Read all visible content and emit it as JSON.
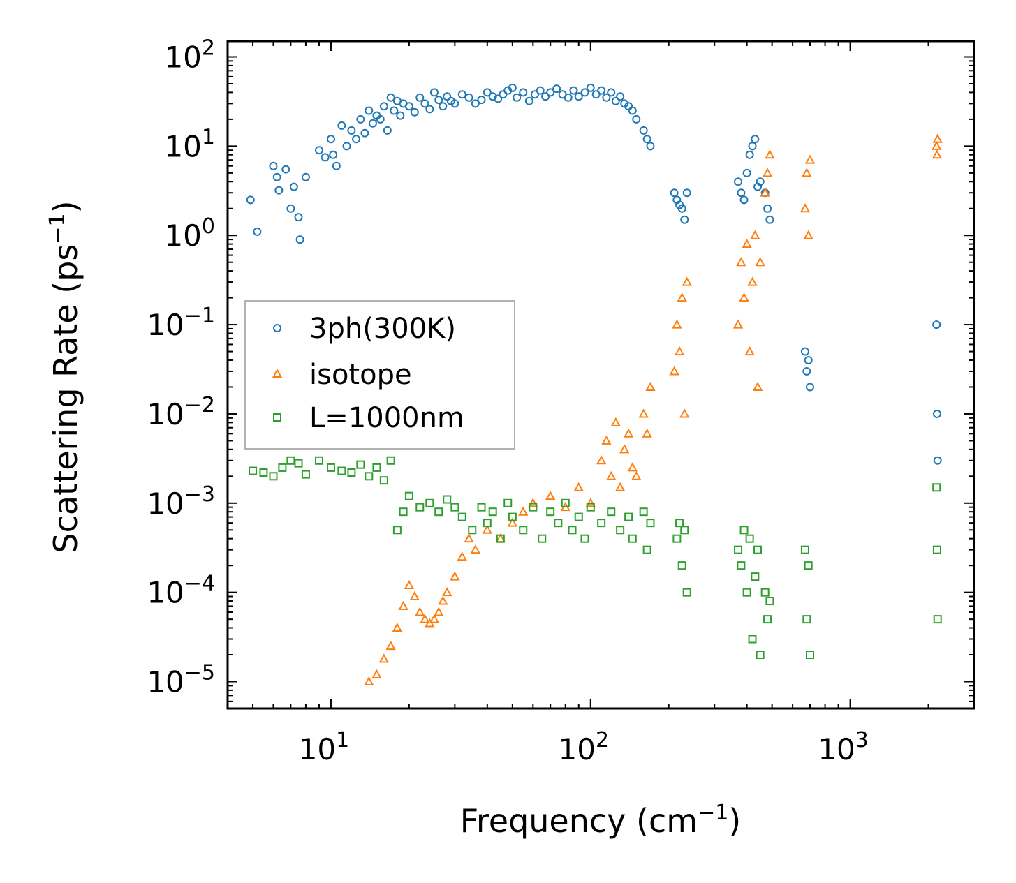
{
  "chart_data": {
    "type": "scatter",
    "xscale": "log",
    "yscale": "log",
    "xlim": [
      4,
      3000
    ],
    "ylim": [
      5e-06,
      150
    ],
    "xlabel": {
      "base": "Frequency (cm",
      "sup": "−1",
      "tail": ")"
    },
    "ylabel": {
      "base": "Scattering Rate (ps",
      "sup": "−1",
      "tail": ")"
    },
    "xticks": [
      {
        "value": 10,
        "base": "10",
        "exp": "1"
      },
      {
        "value": 100,
        "base": "10",
        "exp": "2"
      },
      {
        "value": 1000,
        "base": "10",
        "exp": "3"
      }
    ],
    "yticks": [
      {
        "value": 100,
        "base": "10",
        "exp": "2"
      },
      {
        "value": 10,
        "base": "10",
        "exp": "1"
      },
      {
        "value": 1,
        "base": "10",
        "exp": "0"
      },
      {
        "value": 0.1,
        "base": "10",
        "exp": "−1"
      },
      {
        "value": 0.01,
        "base": "10",
        "exp": "−2"
      },
      {
        "value": 0.001,
        "base": "10",
        "exp": "−3"
      },
      {
        "value": 0.0001,
        "base": "10",
        "exp": "−4"
      },
      {
        "value": 1e-05,
        "base": "10",
        "exp": "−5"
      }
    ],
    "legend_position": "center-left",
    "series": [
      {
        "name": "3ph(300K)",
        "marker": "circle",
        "color": "#1f77b4",
        "x": [
          4.9,
          5.2,
          6,
          6.2,
          6.3,
          6.7,
          7,
          7.2,
          7.5,
          7.6,
          8,
          9,
          9.5,
          10,
          10.2,
          10.5,
          11,
          11.5,
          12,
          12.5,
          13,
          13.5,
          14,
          14.5,
          15,
          15.5,
          16,
          16.5,
          17,
          17.5,
          18,
          18.5,
          19,
          20,
          21,
          22,
          23,
          24,
          25,
          26,
          27,
          28,
          29,
          30,
          32,
          34,
          36,
          38,
          40,
          42,
          44,
          46,
          48,
          50,
          52,
          55,
          58,
          61,
          64,
          67,
          70,
          74,
          78,
          82,
          86,
          90,
          95,
          100,
          105,
          110,
          115,
          120,
          125,
          130,
          135,
          140,
          145,
          150,
          160,
          165,
          170,
          210,
          215,
          220,
          225,
          230,
          235,
          370,
          380,
          390,
          400,
          410,
          420,
          430,
          440,
          450,
          470,
          480,
          490,
          670,
          680,
          690,
          700,
          2150,
          2160,
          2170
        ],
        "y": [
          2.5,
          1.1,
          6,
          4.5,
          3.2,
          5.5,
          2,
          3.5,
          1.6,
          0.9,
          4.5,
          9,
          7.5,
          12,
          8,
          6,
          17,
          10,
          15,
          12,
          20,
          14,
          25,
          18,
          22,
          20,
          28,
          15,
          35,
          25,
          32,
          22,
          30,
          28,
          24,
          35,
          30,
          26,
          40,
          33,
          28,
          36,
          32,
          30,
          38,
          35,
          30,
          33,
          40,
          36,
          34,
          38,
          42,
          45,
          35,
          40,
          32,
          38,
          42,
          36,
          40,
          44,
          38,
          35,
          42,
          36,
          40,
          45,
          38,
          42,
          35,
          40,
          32,
          36,
          30,
          28,
          25,
          20,
          15,
          12,
          10,
          3,
          2.5,
          2.2,
          2,
          1.5,
          3,
          4,
          3,
          2.5,
          5,
          8,
          10,
          12,
          3.5,
          4,
          3,
          2,
          1.5,
          0.05,
          0.03,
          0.04,
          0.02,
          0.1,
          0.01,
          0.003
        ]
      },
      {
        "name": "isotope",
        "marker": "triangle",
        "color": "#ff7f0e",
        "x": [
          14,
          15,
          16,
          17,
          18,
          19,
          20,
          21,
          22,
          23,
          24,
          25,
          26,
          27,
          28,
          30,
          32,
          34,
          36,
          40,
          45,
          50,
          55,
          60,
          70,
          80,
          90,
          100,
          110,
          115,
          120,
          125,
          130,
          135,
          140,
          145,
          150,
          160,
          165,
          170,
          210,
          215,
          220,
          225,
          230,
          235,
          370,
          380,
          390,
          400,
          410,
          420,
          430,
          440,
          450,
          470,
          480,
          490,
          670,
          680,
          690,
          700,
          2150,
          2160,
          2170
        ],
        "y": [
          1e-05,
          1.2e-05,
          1.8e-05,
          2.5e-05,
          4e-05,
          7e-05,
          0.00012,
          9e-05,
          6e-05,
          5e-05,
          4.5e-05,
          5e-05,
          6e-05,
          8e-05,
          0.0001,
          0.00015,
          0.00025,
          0.0004,
          0.0003,
          0.0005,
          0.0004,
          0.0006,
          0.0008,
          0.001,
          0.0012,
          0.0009,
          0.0015,
          0.001,
          0.003,
          0.005,
          0.002,
          0.008,
          0.0015,
          0.004,
          0.006,
          0.0025,
          0.002,
          0.01,
          0.006,
          0.02,
          0.03,
          0.1,
          0.05,
          0.2,
          0.01,
          0.3,
          0.1,
          0.5,
          0.2,
          0.8,
          0.05,
          0.3,
          1,
          0.02,
          0.5,
          3,
          5,
          8,
          2,
          5,
          1,
          7,
          10,
          8,
          12
        ]
      },
      {
        "name": "L=1000nm",
        "marker": "square",
        "color": "#2ca02c",
        "x": [
          5,
          5.5,
          6,
          6.5,
          7,
          7.5,
          8,
          9,
          10,
          11,
          12,
          13,
          14,
          15,
          16,
          17,
          18,
          19,
          20,
          22,
          24,
          26,
          28,
          30,
          32,
          35,
          38,
          40,
          42,
          45,
          48,
          50,
          55,
          60,
          65,
          70,
          75,
          80,
          85,
          90,
          95,
          100,
          110,
          120,
          130,
          140,
          145,
          160,
          165,
          170,
          215,
          220,
          225,
          230,
          235,
          370,
          380,
          390,
          400,
          410,
          420,
          430,
          440,
          450,
          470,
          480,
          490,
          670,
          680,
          690,
          700,
          2150,
          2160,
          2170
        ],
        "y": [
          0.0023,
          0.0022,
          0.002,
          0.0025,
          0.003,
          0.0028,
          0.0021,
          0.003,
          0.0025,
          0.0023,
          0.0022,
          0.0027,
          0.002,
          0.0025,
          0.0018,
          0.003,
          0.0005,
          0.0008,
          0.0012,
          0.0009,
          0.001,
          0.0008,
          0.0011,
          0.0009,
          0.0007,
          0.0005,
          0.0009,
          0.0006,
          0.0008,
          0.0004,
          0.001,
          0.0007,
          0.0005,
          0.0009,
          0.0004,
          0.0008,
          0.0006,
          0.001,
          0.0005,
          0.0007,
          0.0004,
          0.0009,
          0.0006,
          0.0008,
          0.0005,
          0.0007,
          0.0004,
          0.0008,
          0.0003,
          0.0006,
          0.0004,
          0.0006,
          0.0002,
          0.0005,
          0.0001,
          0.0003,
          0.0002,
          0.0005,
          0.0001,
          0.0004,
          3e-05,
          0.00015,
          0.0003,
          2e-05,
          0.0001,
          5e-05,
          8e-05,
          0.0003,
          5e-05,
          0.0002,
          2e-05,
          0.0015,
          0.0003,
          5e-05
        ]
      }
    ]
  }
}
